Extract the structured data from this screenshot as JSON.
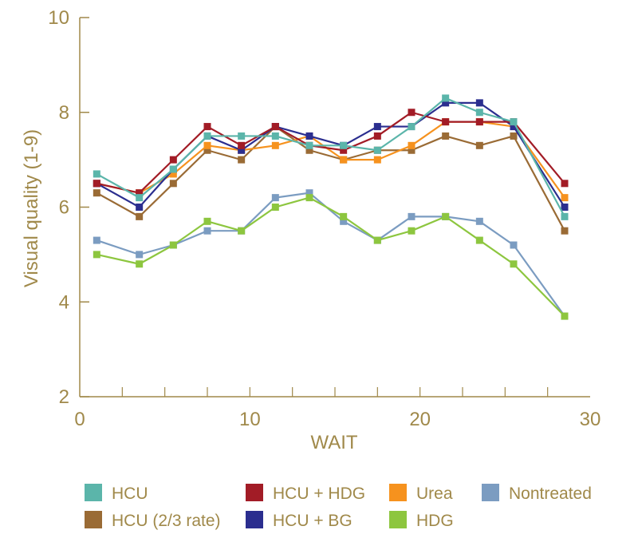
{
  "chart_data": {
    "type": "line",
    "title": "",
    "xlabel": "WAIT",
    "ylabel": "Visual quality (1-9)",
    "xlim": [
      0,
      30
    ],
    "ylim": [
      2,
      10
    ],
    "xticks": [
      0,
      10,
      20,
      30
    ],
    "yticks": [
      2,
      4,
      6,
      8,
      10
    ],
    "grid": false,
    "legend_position": "bottom",
    "x": [
      1,
      3.5,
      5.5,
      7.5,
      9.5,
      11.5,
      13.5,
      15.5,
      17.5,
      19.5,
      21.5,
      23.5,
      25.5,
      28.5
    ],
    "series": [
      {
        "name": "HCU",
        "color": "#5bb5aa",
        "values": [
          6.7,
          6.2,
          6.8,
          7.5,
          7.5,
          7.5,
          7.3,
          7.3,
          7.2,
          7.7,
          8.3,
          8.0,
          7.8,
          5.8
        ]
      },
      {
        "name": "HCU + HDG",
        "color": "#a21c26",
        "values": [
          6.5,
          6.3,
          7.0,
          7.7,
          7.3,
          7.7,
          7.3,
          7.2,
          7.5,
          8.0,
          7.8,
          7.8,
          7.8,
          6.5
        ]
      },
      {
        "name": "Urea",
        "color": "#f6921e",
        "values": [
          6.5,
          6.3,
          6.7,
          7.3,
          7.2,
          7.3,
          7.5,
          7.0,
          7.0,
          7.3,
          7.8,
          7.8,
          7.7,
          6.2
        ]
      },
      {
        "name": "Nontreated",
        "color": "#7b9cc1",
        "values": [
          5.3,
          5.0,
          5.2,
          5.5,
          5.5,
          6.2,
          6.3,
          5.7,
          5.3,
          5.8,
          5.8,
          5.7,
          5.2,
          3.7
        ]
      },
      {
        "name": "HCU (2/3 rate)",
        "color": "#9a6b35",
        "values": [
          6.3,
          5.8,
          6.5,
          7.2,
          7.0,
          7.7,
          7.2,
          7.0,
          7.2,
          7.2,
          7.5,
          7.3,
          7.5,
          5.5
        ]
      },
      {
        "name": "HCU + BG",
        "color": "#2b2e8f",
        "values": [
          6.5,
          6.0,
          6.8,
          7.5,
          7.2,
          7.7,
          7.5,
          7.3,
          7.7,
          7.7,
          8.2,
          8.2,
          7.7,
          6.0
        ]
      },
      {
        "name": "HDG",
        "color": "#8dc63f",
        "values": [
          5.0,
          4.8,
          5.2,
          5.7,
          5.5,
          6.0,
          6.2,
          5.8,
          5.3,
          5.5,
          5.8,
          5.3,
          4.8,
          3.7
        ]
      }
    ]
  }
}
